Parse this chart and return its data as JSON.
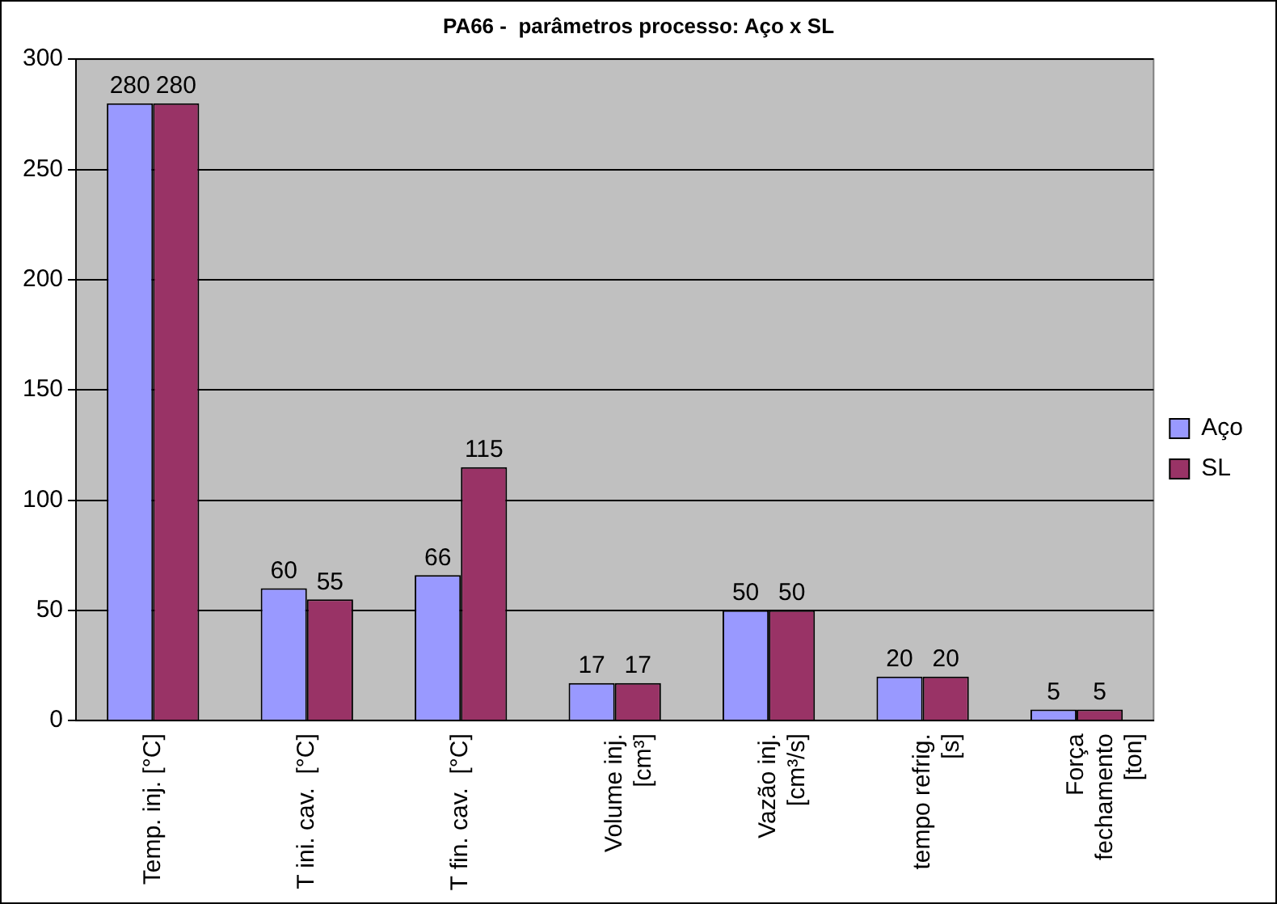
{
  "chart_data": {
    "type": "bar",
    "title": "PA66 -  parâmetros processo: Aço x SL",
    "categories": [
      "Temp. inj. [°C]",
      "T ini. cav.  [°C]",
      "T fin. cav.  [°C]",
      "Volume inj.\n[cm³]",
      "Vazão inj.\n[cm³/s]",
      "tempo refrig.\n[s]",
      "Força\nfechamento\n[ton]"
    ],
    "series": [
      {
        "name": "Aço",
        "color": "#9999ff",
        "values": [
          280,
          60,
          66,
          17,
          50,
          20,
          5
        ]
      },
      {
        "name": "SL",
        "color": "#993366",
        "values": [
          280,
          55,
          115,
          17,
          50,
          20,
          5
        ]
      }
    ],
    "ylim": [
      0,
      300
    ],
    "yticks": [
      0,
      50,
      100,
      150,
      200,
      250,
      300
    ],
    "grid": "y",
    "legend": "right",
    "data_labels": true
  }
}
